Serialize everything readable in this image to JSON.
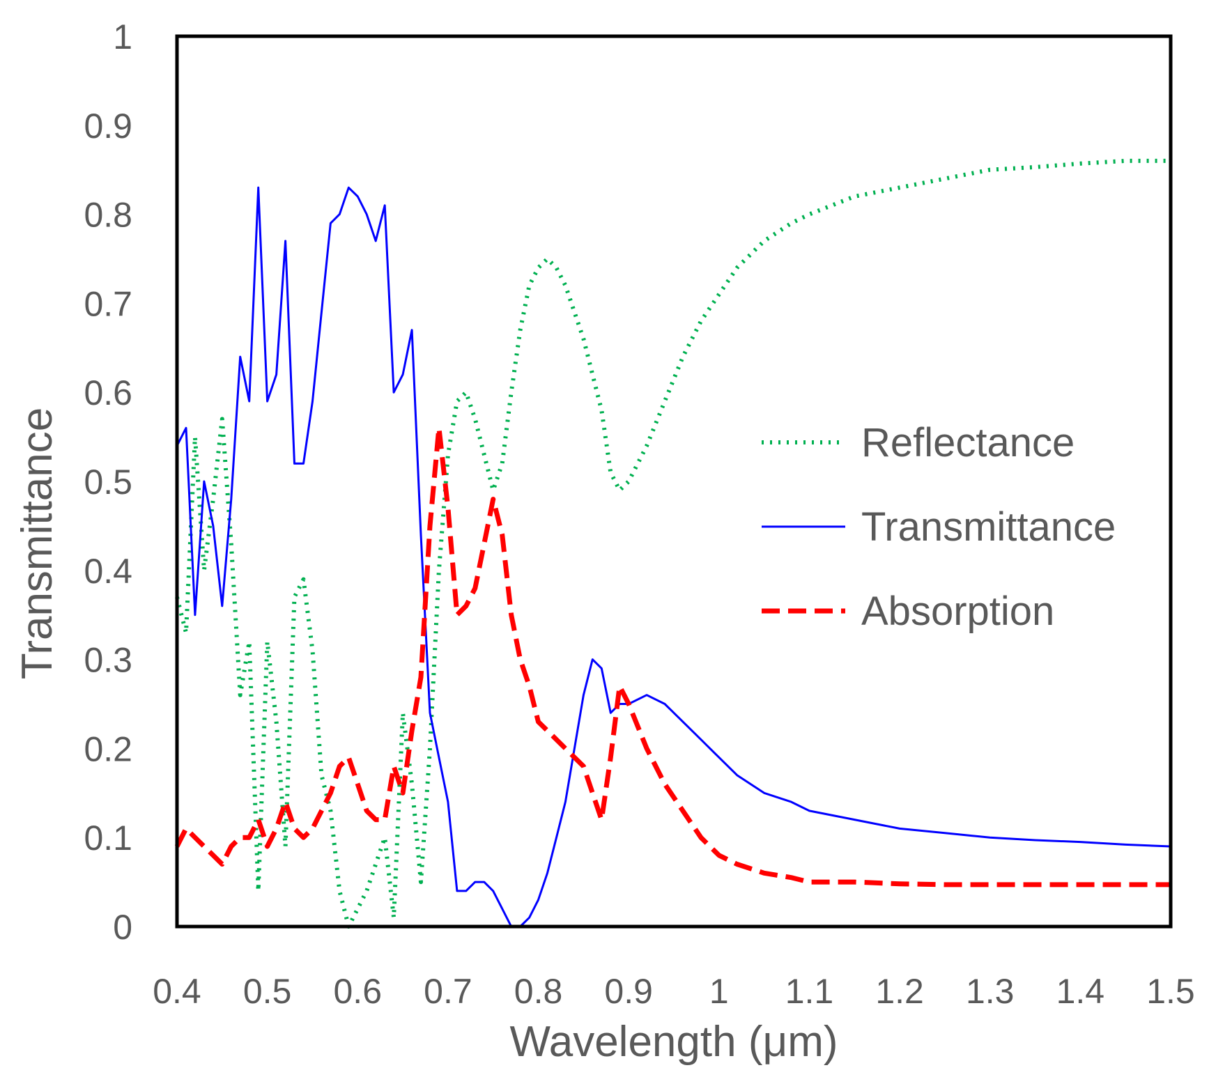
{
  "chart_data": {
    "type": "line",
    "title": "",
    "xlabel": "Wavelength (μm)",
    "ylabel": "Transmittance",
    "xlim": [
      0.4,
      1.5
    ],
    "ylim": [
      0,
      1
    ],
    "xticks": [
      "0.4",
      "0.5",
      "0.6",
      "0.7",
      "0.8",
      "0.9",
      "1",
      "1.1",
      "1.2",
      "1.3",
      "1.4",
      "1.5"
    ],
    "yticks": [
      "0",
      "0.1",
      "0.2",
      "0.3",
      "0.4",
      "0.5",
      "0.6",
      "0.7",
      "0.8",
      "0.9",
      "1"
    ],
    "grid": false,
    "legend_position": "center-right",
    "series": [
      {
        "name": "Reflectance",
        "color": "#00B050",
        "style": "dotted",
        "x": [
          0.4,
          0.41,
          0.42,
          0.43,
          0.44,
          0.45,
          0.46,
          0.47,
          0.48,
          0.49,
          0.5,
          0.51,
          0.52,
          0.53,
          0.54,
          0.55,
          0.56,
          0.57,
          0.58,
          0.59,
          0.6,
          0.61,
          0.62,
          0.63,
          0.64,
          0.65,
          0.66,
          0.67,
          0.68,
          0.69,
          0.7,
          0.71,
          0.72,
          0.73,
          0.74,
          0.75,
          0.76,
          0.77,
          0.78,
          0.79,
          0.8,
          0.81,
          0.82,
          0.83,
          0.84,
          0.85,
          0.86,
          0.87,
          0.88,
          0.89,
          0.9,
          0.92,
          0.94,
          0.96,
          0.98,
          1.0,
          1.02,
          1.05,
          1.08,
          1.1,
          1.15,
          1.2,
          1.25,
          1.3,
          1.35,
          1.4,
          1.45,
          1.5
        ],
        "values": [
          0.37,
          0.33,
          0.55,
          0.4,
          0.48,
          0.57,
          0.43,
          0.26,
          0.32,
          0.04,
          0.32,
          0.23,
          0.09,
          0.37,
          0.39,
          0.31,
          0.17,
          0.13,
          0.04,
          0.0,
          0.02,
          0.04,
          0.07,
          0.1,
          0.01,
          0.24,
          0.16,
          0.05,
          0.2,
          0.4,
          0.53,
          0.59,
          0.6,
          0.57,
          0.53,
          0.49,
          0.52,
          0.6,
          0.67,
          0.72,
          0.74,
          0.75,
          0.74,
          0.72,
          0.69,
          0.66,
          0.62,
          0.58,
          0.51,
          0.49,
          0.5,
          0.54,
          0.59,
          0.64,
          0.68,
          0.71,
          0.74,
          0.77,
          0.79,
          0.8,
          0.82,
          0.83,
          0.84,
          0.85,
          0.853,
          0.857,
          0.86,
          0.86
        ]
      },
      {
        "name": "Transmittance",
        "color": "#0000FF",
        "style": "solid",
        "x": [
          0.4,
          0.41,
          0.42,
          0.43,
          0.44,
          0.45,
          0.46,
          0.47,
          0.48,
          0.49,
          0.5,
          0.51,
          0.52,
          0.53,
          0.54,
          0.55,
          0.56,
          0.57,
          0.58,
          0.59,
          0.6,
          0.61,
          0.62,
          0.63,
          0.64,
          0.65,
          0.66,
          0.67,
          0.68,
          0.69,
          0.7,
          0.71,
          0.72,
          0.73,
          0.74,
          0.75,
          0.76,
          0.77,
          0.78,
          0.79,
          0.8,
          0.81,
          0.82,
          0.83,
          0.84,
          0.85,
          0.86,
          0.87,
          0.88,
          0.89,
          0.9,
          0.92,
          0.94,
          0.96,
          0.98,
          1.0,
          1.02,
          1.05,
          1.08,
          1.1,
          1.15,
          1.2,
          1.25,
          1.3,
          1.35,
          1.4,
          1.45,
          1.5
        ],
        "values": [
          0.54,
          0.56,
          0.35,
          0.5,
          0.45,
          0.36,
          0.48,
          0.64,
          0.59,
          0.83,
          0.59,
          0.62,
          0.77,
          0.52,
          0.52,
          0.59,
          0.69,
          0.79,
          0.8,
          0.83,
          0.82,
          0.8,
          0.77,
          0.81,
          0.6,
          0.62,
          0.67,
          0.44,
          0.24,
          0.19,
          0.14,
          0.04,
          0.04,
          0.05,
          0.05,
          0.04,
          0.02,
          0.0,
          0.0,
          0.01,
          0.03,
          0.06,
          0.1,
          0.14,
          0.2,
          0.26,
          0.3,
          0.29,
          0.24,
          0.25,
          0.25,
          0.26,
          0.25,
          0.23,
          0.21,
          0.19,
          0.17,
          0.15,
          0.14,
          0.13,
          0.12,
          0.11,
          0.105,
          0.1,
          0.097,
          0.095,
          0.092,
          0.09
        ]
      },
      {
        "name": "Absorption",
        "color": "#FF0000",
        "style": "dashed",
        "x": [
          0.4,
          0.41,
          0.42,
          0.43,
          0.44,
          0.45,
          0.46,
          0.47,
          0.48,
          0.49,
          0.5,
          0.51,
          0.52,
          0.53,
          0.54,
          0.55,
          0.56,
          0.57,
          0.58,
          0.59,
          0.6,
          0.61,
          0.62,
          0.63,
          0.64,
          0.65,
          0.66,
          0.67,
          0.68,
          0.69,
          0.7,
          0.71,
          0.72,
          0.73,
          0.74,
          0.75,
          0.76,
          0.77,
          0.78,
          0.79,
          0.8,
          0.81,
          0.82,
          0.83,
          0.84,
          0.85,
          0.86,
          0.87,
          0.88,
          0.89,
          0.9,
          0.92,
          0.94,
          0.96,
          0.98,
          1.0,
          1.02,
          1.05,
          1.08,
          1.1,
          1.15,
          1.2,
          1.25,
          1.3,
          1.35,
          1.4,
          1.45,
          1.5
        ],
        "values": [
          0.09,
          0.11,
          0.1,
          0.09,
          0.08,
          0.07,
          0.09,
          0.1,
          0.1,
          0.12,
          0.09,
          0.11,
          0.14,
          0.11,
          0.1,
          0.11,
          0.13,
          0.15,
          0.18,
          0.19,
          0.16,
          0.13,
          0.12,
          0.12,
          0.18,
          0.15,
          0.22,
          0.28,
          0.45,
          0.56,
          0.47,
          0.35,
          0.36,
          0.38,
          0.43,
          0.48,
          0.44,
          0.35,
          0.3,
          0.27,
          0.23,
          0.22,
          0.21,
          0.2,
          0.19,
          0.18,
          0.15,
          0.12,
          0.19,
          0.27,
          0.25,
          0.2,
          0.16,
          0.13,
          0.1,
          0.08,
          0.07,
          0.06,
          0.055,
          0.05,
          0.05,
          0.048,
          0.047,
          0.047,
          0.047,
          0.047,
          0.047,
          0.047
        ]
      }
    ]
  }
}
